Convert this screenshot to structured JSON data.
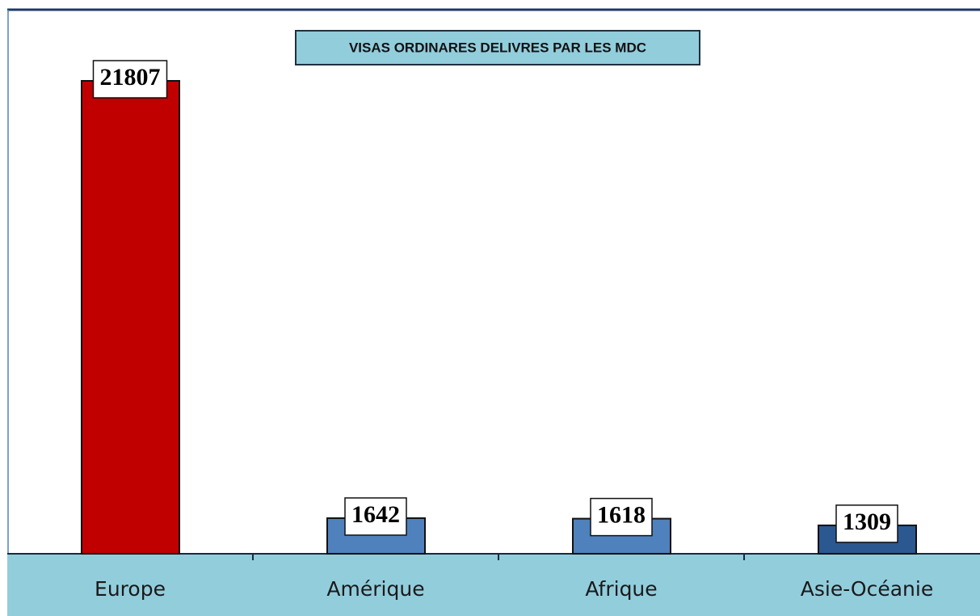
{
  "chart_data": {
    "type": "bar",
    "title": "VISAS ORDINARES DELIVRES PAR LES MDC",
    "categories": [
      "Europe",
      "Amérique",
      "Afrique",
      "Asie-Océanie"
    ],
    "values": [
      21807,
      1642,
      1618,
      1309
    ],
    "colors": [
      "#c00000",
      "#4f81bd",
      "#4f81bd",
      "#2b5891"
    ]
  }
}
